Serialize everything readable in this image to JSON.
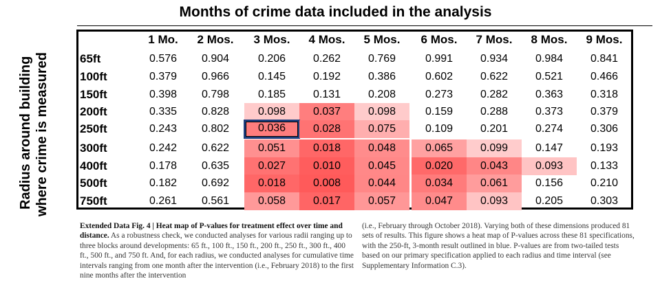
{
  "title": "Months of crime data included in the analysis",
  "y_title_lines": [
    "Radius around building",
    "where crime is measured"
  ],
  "table": {
    "columns": [
      "1 Mo.",
      "2 Mos.",
      "3 Mos.",
      "4 Mos.",
      "5 Mos.",
      "6 Mos.",
      "7 Mos.",
      "8 Mos.",
      "9 Mos."
    ],
    "rows": [
      {
        "label": "65ft",
        "values": [
          "0.576",
          "0.904",
          "0.206",
          "0.262",
          "0.769",
          "0.991",
          "0.934",
          "0.984",
          "0.841"
        ]
      },
      {
        "label": "100ft",
        "values": [
          "0.379",
          "0.966",
          "0.145",
          "0.192",
          "0.386",
          "0.602",
          "0.622",
          "0.521",
          "0.466"
        ]
      },
      {
        "label": "150ft",
        "values": [
          "0.398",
          "0.798",
          "0.185",
          "0.131",
          "0.208",
          "0.273",
          "0.282",
          "0.363",
          "0.318"
        ]
      },
      {
        "label": "200ft",
        "values": [
          "0.335",
          "0.828",
          "0.098",
          "0.037",
          "0.098",
          "0.159",
          "0.288",
          "0.373",
          "0.379"
        ]
      },
      {
        "label": "250ft",
        "values": [
          "0.243",
          "0.802",
          "0.036",
          "0.028",
          "0.075",
          "0.109",
          "0.201",
          "0.274",
          "0.306"
        ]
      },
      {
        "label": "300ft",
        "values": [
          "0.242",
          "0.622",
          "0.051",
          "0.018",
          "0.048",
          "0.065",
          "0.099",
          "0.147",
          "0.193"
        ]
      },
      {
        "label": "400ft",
        "values": [
          "0.178",
          "0.635",
          "0.027",
          "0.010",
          "0.045",
          "0.020",
          "0.043",
          "0.093",
          "0.133"
        ]
      },
      {
        "label": "500ft",
        "values": [
          "0.182",
          "0.692",
          "0.018",
          "0.008",
          "0.044",
          "0.034",
          "0.061",
          "0.156",
          "0.210"
        ]
      },
      {
        "label": "750ft",
        "values": [
          "0.261",
          "0.561",
          "0.058",
          "0.017",
          "0.057",
          "0.047",
          "0.093",
          "0.205",
          "0.303"
        ]
      }
    ],
    "outlined_cell": {
      "row": "250ft",
      "column": "3 Mos."
    },
    "colors": {
      "outline": "#1f3e7c",
      "heat_min": "#ffffff",
      "heat_max": "#e85555"
    }
  },
  "caption": {
    "left_bold": "Extended Data Fig. 4 | Heat map of P-values for treatment effect over time and distance.",
    "left_text": " As a robustness check, we conducted analyses for various radii ranging up to three blocks around developments: 65 ft., 100 ft., 150 ft., 200 ft., 250 ft., 300 ft., 400 ft., 500 ft., and 750 ft. And, for each radius, we conducted analyses for cumulative time intervals ranging from one month after the intervention (i.e., February 2018) to the first nine months after the intervention",
    "right_text": "(i.e., February through October 2018). Varying both of these dimensions produced 81 sets of results. This figure shows a heat map of P-values across these 81 specifications, with the 250-ft, 3-month result outlined in blue. P-values are from two-tailed tests based on our primary specification applied to each radius and time interval (see Supplementary Information C.3)."
  }
}
